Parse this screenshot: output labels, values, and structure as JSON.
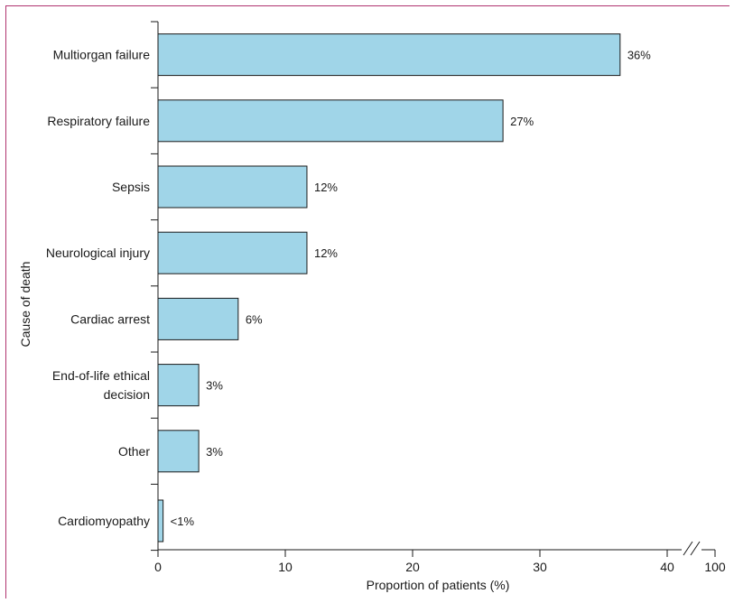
{
  "chart_data": {
    "type": "bar",
    "orientation": "horizontal",
    "ylabel": "Cause of death",
    "xlabel": "Proportion of patients (%)",
    "categories": [
      [
        "Multiorgan failure"
      ],
      [
        "Respiratory failure"
      ],
      [
        "Sepsis"
      ],
      [
        "Neurological injury"
      ],
      [
        "Cardiac arrest"
      ],
      [
        "End-of-life ethical",
        "decision"
      ],
      [
        "Other"
      ],
      [
        "Cardiomyopathy"
      ]
    ],
    "values": [
      36.3,
      27.1,
      11.7,
      11.7,
      6.3,
      3.2,
      3.2,
      0.4
    ],
    "data_labels": [
      "36%",
      "27%",
      "12%",
      "12%",
      "6%",
      "3%",
      "3%",
      "<1%"
    ],
    "x_ticks": [
      {
        "value": 0,
        "label": "0"
      },
      {
        "value": 10,
        "label": "10"
      },
      {
        "value": 20,
        "label": "20"
      },
      {
        "value": 30,
        "label": "30"
      },
      {
        "value": 40,
        "label": "40"
      },
      {
        "value": 100,
        "label": "100"
      }
    ],
    "xlim": [
      0,
      40
    ],
    "axis_break": {
      "from": 40,
      "to": 100
    },
    "grid": false,
    "colors": {
      "bar_fill": "#a0d5e8",
      "bar_stroke": "#1a1a1a",
      "frame": "#b0336f"
    }
  }
}
